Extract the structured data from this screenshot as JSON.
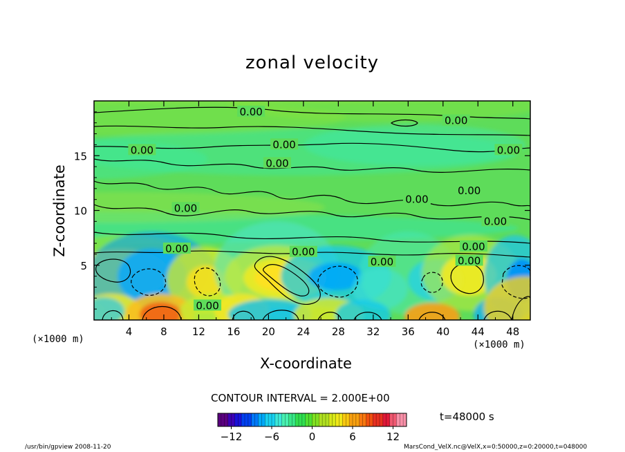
{
  "chart_data": {
    "type": "heatmap",
    "title": "zonal velocity",
    "xlabel": "X-coordinate",
    "ylabel": "Z-coordinate",
    "x_unit": "(×1000 m)",
    "y_unit": "(×1000 m)",
    "xlim": [
      0,
      50
    ],
    "ylim": [
      0,
      20
    ],
    "x_ticks": [
      4,
      8,
      12,
      16,
      20,
      24,
      28,
      32,
      36,
      40,
      44,
      48
    ],
    "y_ticks": [
      5,
      10,
      15
    ],
    "contour_interval_text": "CONTOUR INTERVAL = 2.000E+00",
    "contour_interval": 2.0,
    "contour_label": "0.00",
    "contour_label_points": [
      [
        18.0,
        19.0
      ],
      [
        41.5,
        18.2
      ],
      [
        5.5,
        15.5
      ],
      [
        21.8,
        16.0
      ],
      [
        21.0,
        14.3
      ],
      [
        47.5,
        15.5
      ],
      [
        10.5,
        10.2
      ],
      [
        37.0,
        11.0
      ],
      [
        43.0,
        11.8
      ],
      [
        46.0,
        9.0
      ],
      [
        9.5,
        6.5
      ],
      [
        24.0,
        6.2
      ],
      [
        33.0,
        5.3
      ],
      [
        43.5,
        6.7
      ],
      [
        43.0,
        5.4
      ],
      [
        13.0,
        1.3
      ]
    ],
    "time_label": "t=48000 s",
    "colorbar": {
      "range": [
        -14,
        14
      ],
      "tick_values": [
        -12,
        -6,
        0,
        6,
        12
      ],
      "tick_labels": [
        "−12",
        "−6",
        "0",
        "6",
        "12"
      ],
      "colors": [
        "#5a007f",
        "#3c00b4",
        "#1a10d8",
        "#0040f0",
        "#0078f8",
        "#00a8f8",
        "#18d0f0",
        "#3ce8d8",
        "#48f0b0",
        "#38e888",
        "#30e050",
        "#50e030",
        "#80e020",
        "#b0e020",
        "#d8e818",
        "#f0e818",
        "#f8c810",
        "#f8a010",
        "#f87810",
        "#f05010",
        "#e83020",
        "#e01838",
        "#f05870",
        "#f890a8"
      ]
    },
    "colormap_background": "#5edc5a"
  },
  "footer": {
    "left": "/usr/bin/gpview   2008-11-20",
    "right": "MarsCond_VelX.nc@VelX,x=0:50000,z=0:20000,t=048000"
  }
}
